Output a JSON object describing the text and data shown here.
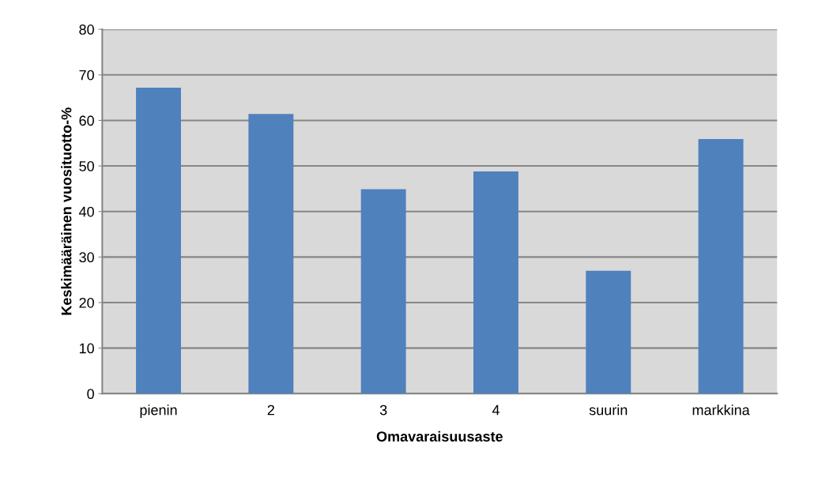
{
  "chart_data": {
    "type": "bar",
    "xlabel": "Omavaraisuusaste",
    "ylabel": "Keskimääräinen vuosituotto-%",
    "categories": [
      "pienin",
      "2",
      "3",
      "4",
      "suurin",
      "markkina"
    ],
    "values": [
      67.2,
      61.4,
      44.9,
      48.8,
      27.0,
      55.9
    ],
    "color": "#4f81bd",
    "ylim": [
      0,
      80
    ],
    "yticks": [
      0,
      10,
      20,
      30,
      40,
      50,
      60,
      70,
      80
    ],
    "grid": "y",
    "legend": false
  }
}
